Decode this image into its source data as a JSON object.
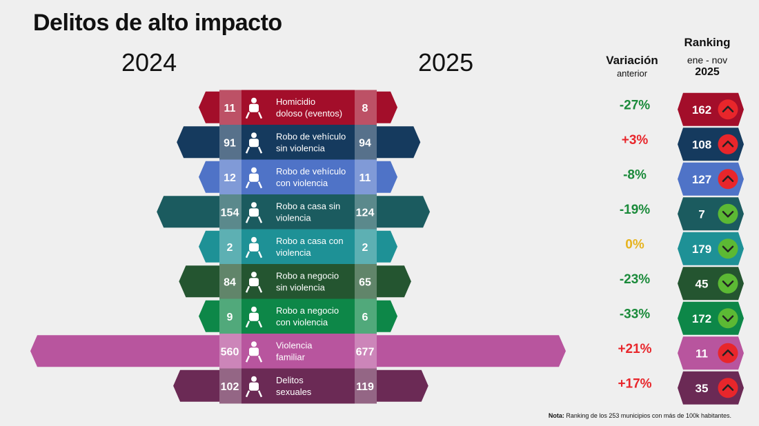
{
  "title": "Delitos de alto impacto",
  "year_left": "2024",
  "year_right": "2025",
  "header_variation": "Variación",
  "header_variation_sub": "anterior",
  "header_ranking": "Ranking",
  "header_ranking_sub": "ene - nov",
  "header_ranking_year": "2025",
  "note_bold": "Nota:",
  "note_text": "Ranking de los 253 municipios con más de 100k habitantes.",
  "chart_data": {
    "type": "bar",
    "categories": [
      [
        "Homicidio",
        "doloso (eventos)"
      ],
      [
        "Robo de vehículo",
        "sin violencia"
      ],
      [
        "Robo de vehículo",
        "con violencia"
      ],
      [
        "Robo a casa sin",
        "violencia"
      ],
      [
        "Robo a casa con",
        "violencia"
      ],
      [
        "Robo a negocio",
        "sin violencia"
      ],
      [
        "Robo a negocio",
        "con violencia"
      ],
      [
        "Violencia",
        "familiar"
      ],
      [
        "Delitos",
        "sexuales"
      ]
    ],
    "series": [
      {
        "name": "2024",
        "values": [
          11,
          91,
          12,
          154,
          2,
          84,
          9,
          560,
          102
        ]
      },
      {
        "name": "2025",
        "values": [
          8,
          94,
          11,
          124,
          2,
          65,
          6,
          677,
          119
        ]
      }
    ],
    "variation": [
      "-27%",
      "+3%",
      "-8%",
      "-19%",
      "0%",
      "-23%",
      "-33%",
      "+21%",
      "+17%"
    ],
    "ranking": [
      162,
      108,
      127,
      7,
      179,
      45,
      172,
      11,
      35
    ],
    "ranking_trend": [
      "up",
      "up",
      "up",
      "down",
      "down",
      "down",
      "down",
      "up",
      "up"
    ],
    "icons": [
      "person-running-icon",
      "car-icon",
      "car-robbery-icon",
      "house-icon",
      "door-intruder-icon",
      "money-bag-icon",
      "store-robbery-icon",
      "family-violence-icon",
      "hand-fist-icon"
    ],
    "colors": [
      "#a30e2a",
      "#153a5e",
      "#4f73c7",
      "#1b5b5f",
      "#1e9196",
      "#245530",
      "#0d8748",
      "#b8559e",
      "#6b2a55"
    ],
    "variation_colors": {
      "negative": "#1a8a3a",
      "positive": "#e8262b",
      "zero": "#e6b31e"
    },
    "trend_colors": {
      "up": "#e8262b",
      "down": "#5cb934"
    }
  }
}
